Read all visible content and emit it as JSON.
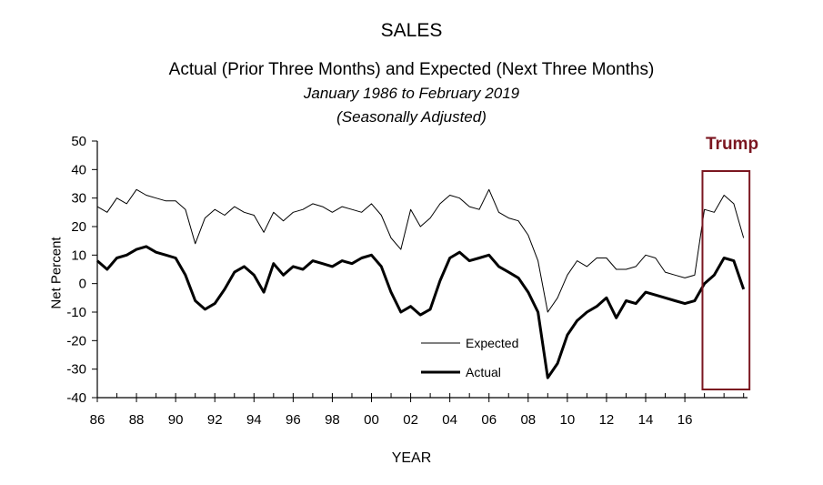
{
  "chart_data": {
    "type": "line",
    "title": "SALES",
    "subtitle": "Actual (Prior Three Months) and Expected (Next Three Months)",
    "date_range_text": "January 1986 to February 2019",
    "adjustment_text": "(Seasonally Adjusted)",
    "xlabel": "YEAR",
    "ylabel": "Net Percent",
    "xlim": [
      1986,
      2019.2
    ],
    "ylim": [
      -40,
      50
    ],
    "yticks": [
      -40,
      -30,
      -20,
      -10,
      0,
      10,
      20,
      30,
      40,
      50
    ],
    "ytick_labels": [
      "-40",
      "-30",
      "-20",
      "-10",
      "0",
      "10",
      "20",
      "30",
      "40",
      "50"
    ],
    "xticks": [
      1986,
      1988,
      1990,
      1992,
      1994,
      1996,
      1998,
      2000,
      2002,
      2004,
      2006,
      2008,
      2010,
      2012,
      2014,
      2016
    ],
    "xtick_labels": [
      "86",
      "88",
      "90",
      "92",
      "94",
      "96",
      "98",
      "00",
      "02",
      "04",
      "06",
      "08",
      "10",
      "12",
      "14",
      "16"
    ],
    "grid": false,
    "legend_placement": "lower-center",
    "series": [
      {
        "name": "Expected",
        "color": "#000000",
        "x": [
          1986.0,
          1986.5,
          1987.0,
          1987.5,
          1988.0,
          1988.5,
          1989.0,
          1989.5,
          1990.0,
          1990.5,
          1991.0,
          1991.5,
          1992.0,
          1992.5,
          1993.0,
          1993.5,
          1994.0,
          1994.5,
          1995.0,
          1995.5,
          1996.0,
          1996.5,
          1997.0,
          1997.5,
          1998.0,
          1998.5,
          1999.0,
          1999.5,
          2000.0,
          2000.5,
          2001.0,
          2001.5,
          2002.0,
          2002.5,
          2003.0,
          2003.5,
          2004.0,
          2004.5,
          2005.0,
          2005.5,
          2006.0,
          2006.5,
          2007.0,
          2007.5,
          2008.0,
          2008.5,
          2009.0,
          2009.5,
          2010.0,
          2010.5,
          2011.0,
          2011.5,
          2012.0,
          2012.5,
          2013.0,
          2013.5,
          2014.0,
          2014.5,
          2015.0,
          2015.5,
          2016.0,
          2016.5,
          2017.0,
          2017.5,
          2018.0,
          2018.5,
          2019.0
        ],
        "values": [
          27,
          25,
          30,
          28,
          33,
          31,
          30,
          29,
          29,
          26,
          14,
          23,
          26,
          24,
          27,
          25,
          24,
          18,
          25,
          22,
          25,
          26,
          28,
          27,
          25,
          27,
          26,
          25,
          28,
          24,
          16,
          12,
          26,
          20,
          23,
          28,
          31,
          30,
          27,
          26,
          33,
          25,
          23,
          22,
          17,
          8,
          -10,
          -5,
          3,
          8,
          6,
          9,
          9,
          5,
          5,
          6,
          10,
          9,
          4,
          3,
          2,
          3,
          26,
          25,
          31,
          28,
          16
        ]
      },
      {
        "name": "Actual",
        "color": "#000000",
        "x": [
          1986.0,
          1986.5,
          1987.0,
          1987.5,
          1988.0,
          1988.5,
          1989.0,
          1989.5,
          1990.0,
          1990.5,
          1991.0,
          1991.5,
          1992.0,
          1992.5,
          1993.0,
          1993.5,
          1994.0,
          1994.5,
          1995.0,
          1995.5,
          1996.0,
          1996.5,
          1997.0,
          1997.5,
          1998.0,
          1998.5,
          1999.0,
          1999.5,
          2000.0,
          2000.5,
          2001.0,
          2001.5,
          2002.0,
          2002.5,
          2003.0,
          2003.5,
          2004.0,
          2004.5,
          2005.0,
          2005.5,
          2006.0,
          2006.5,
          2007.0,
          2007.5,
          2008.0,
          2008.5,
          2009.0,
          2009.5,
          2010.0,
          2010.5,
          2011.0,
          2011.5,
          2012.0,
          2012.5,
          2013.0,
          2013.5,
          2014.0,
          2014.5,
          2015.0,
          2015.5,
          2016.0,
          2016.5,
          2017.0,
          2017.5,
          2018.0,
          2018.5,
          2019.0
        ],
        "values": [
          8,
          5,
          9,
          10,
          12,
          13,
          11,
          10,
          9,
          3,
          -6,
          -9,
          -7,
          -2,
          4,
          6,
          3,
          -3,
          7,
          3,
          6,
          5,
          8,
          7,
          6,
          8,
          7,
          9,
          10,
          6,
          -3,
          -10,
          -8,
          -11,
          -9,
          1,
          9,
          11,
          8,
          9,
          10,
          6,
          4,
          2,
          -3,
          -10,
          -33,
          -28,
          -18,
          -13,
          -10,
          -8,
          -5,
          -12,
          -6,
          -7,
          -3,
          -4,
          -5,
          -6,
          -7,
          -6,
          0,
          3,
          9,
          8,
          -2
        ]
      }
    ],
    "legend": [
      {
        "label": "Expected",
        "style": "thin"
      },
      {
        "label": "Actual",
        "style": "thick"
      }
    ],
    "annotation": {
      "label": "Trump",
      "color": "#7b1620",
      "x_start": 2016.9,
      "x_end": 2019.3
    }
  }
}
